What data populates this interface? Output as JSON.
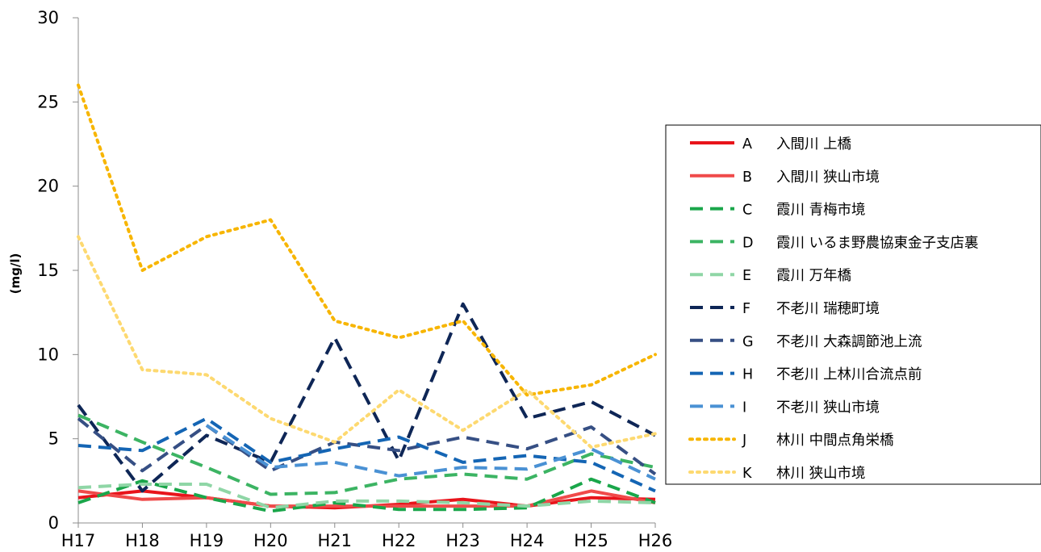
{
  "chart_data": {
    "type": "line",
    "title": "",
    "xlabel": "",
    "ylabel": "(mg/l)",
    "categories": [
      "H17",
      "H18",
      "H19",
      "H20",
      "H21",
      "H22",
      "H23",
      "H24",
      "H25",
      "H26"
    ],
    "ylim": [
      0,
      30
    ],
    "yticks": [
      "0",
      "5",
      "10",
      "15",
      "20",
      "25",
      "30"
    ],
    "grid": false,
    "legend_position": "right",
    "series": [
      {
        "letter": "A",
        "name": "入間川 上橋",
        "color": "#e8141b",
        "dash": "solid",
        "values": [
          1.5,
          1.9,
          1.5,
          1.0,
          0.9,
          1.1,
          1.4,
          1.0,
          1.5,
          1.4
        ]
      },
      {
        "letter": "B",
        "name": "入間川 狭山市境",
        "color": "#f04a4a",
        "dash": "solid",
        "values": [
          1.9,
          1.4,
          1.5,
          1.0,
          1.0,
          1.0,
          1.0,
          1.0,
          1.9,
          1.2
        ]
      },
      {
        "letter": "C",
        "name": "霞川 青梅市境",
        "color": "#1aa64a",
        "dash": "dash",
        "values": [
          1.2,
          2.5,
          1.5,
          0.7,
          1.2,
          0.8,
          0.8,
          0.9,
          2.6,
          1.2
        ]
      },
      {
        "letter": "D",
        "name": "霞川 いるま野農協東金子支店裏",
        "color": "#3cb463",
        "dash": "dash",
        "values": [
          6.4,
          4.8,
          3.3,
          1.7,
          1.8,
          2.6,
          2.9,
          2.6,
          4.1,
          3.3
        ]
      },
      {
        "letter": "E",
        "name": "霞川 万年橋",
        "color": "#8fd6a6",
        "dash": "dash",
        "values": [
          2.1,
          2.3,
          2.3,
          0.9,
          1.3,
          1.3,
          1.2,
          1.0,
          1.3,
          1.2
        ]
      },
      {
        "letter": "F",
        "name": "不老川 瑞穂町境",
        "color": "#0e2656",
        "dash": "dash",
        "values": [
          7.0,
          1.9,
          5.2,
          3.6,
          11.0,
          3.7,
          13.0,
          6.2,
          7.2,
          5.2
        ]
      },
      {
        "letter": "G",
        "name": "不老川 大森調節池上流",
        "color": "#364f84",
        "dash": "dash",
        "values": [
          6.2,
          3.1,
          5.8,
          3.1,
          4.8,
          4.3,
          5.1,
          4.4,
          5.7,
          2.9
        ]
      },
      {
        "letter": "H",
        "name": "不老川 上林川合流点前",
        "color": "#1465b4",
        "dash": "dash",
        "values": [
          4.6,
          4.3,
          6.2,
          3.6,
          4.4,
          5.1,
          3.6,
          4.0,
          3.6,
          1.9
        ]
      },
      {
        "letter": "I",
        "name": "不老川 狭山市境",
        "color": "#4a91d4",
        "dash": "dash",
        "values": [
          null,
          null,
          5.8,
          3.3,
          3.6,
          2.8,
          3.3,
          3.2,
          4.4,
          2.6
        ]
      },
      {
        "letter": "J",
        "name": "林川 中間点角栄橋",
        "color": "#f7b500",
        "dash": "dot",
        "values": [
          26.0,
          15.0,
          17.0,
          18.0,
          12.0,
          11.0,
          12.0,
          7.6,
          8.2,
          10.0
        ]
      },
      {
        "letter": "K",
        "name": "林川 狭山市境",
        "color": "#fdd970",
        "dash": "dot",
        "values": [
          17.0,
          9.1,
          8.8,
          6.2,
          4.8,
          7.9,
          5.5,
          7.9,
          4.5,
          5.3
        ]
      }
    ]
  }
}
